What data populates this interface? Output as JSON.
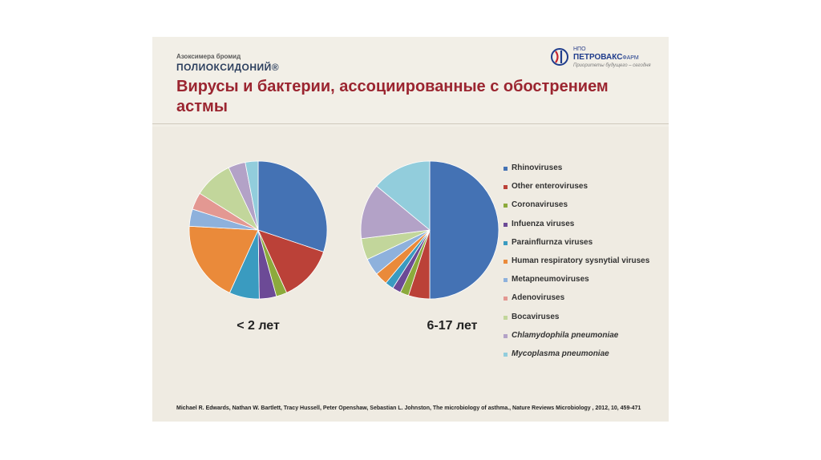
{
  "header": {
    "brand_small": "Азоксимера бромид",
    "brand_big": "ПОЛИОКСИДОНИЙ®",
    "logo_line1": "НПО",
    "logo_name": "ПЕТРОВАКС",
    "logo_suffix": "ФАРМ",
    "logo_tagline": "Приоритеты будущего – сегодня",
    "title": "Вирусы и бактерии, ассоциированные с обострением астмы"
  },
  "citation": "Michael R. Edwards, Nathan W. Bartlett, Tracy Hussell, Peter Openshaw, Sebastian L. Johnston, The microbiology of asthma., Nature Reviews Microbiology , 2012, 10, 459-471",
  "chart_data": [
    {
      "type": "pie",
      "label": "< 2 лет",
      "categories": [
        "Rhinoviruses",
        "Other enteroviruses",
        "Coronaviruses",
        "Infuenza viruses",
        "Parainflurnza viruses",
        "Human respiratory sysnytial viruses",
        "Metapneumoviruses",
        "Adenoviruses",
        "Bocaviruses",
        "Chlamydophila pneumoniae",
        "Mycoplasma pneumoniae"
      ],
      "values": [
        30,
        13,
        2.5,
        4,
        7,
        19,
        4,
        4,
        9,
        4,
        3
      ],
      "legend": "right"
    },
    {
      "type": "pie",
      "label": "6-17 лет",
      "categories": [
        "Rhinoviruses",
        "Other enteroviruses",
        "Coronaviruses",
        "Infuenza viruses",
        "Parainflurnza viruses",
        "Human respiratory sysnytial viruses",
        "Metapneumoviruses",
        "Adenoviruses",
        "Bocaviruses",
        "Chlamydophila pneumoniae",
        "Mycoplasma pneumoniae"
      ],
      "values": [
        50,
        5,
        2,
        2,
        2,
        3,
        4,
        0,
        5,
        13,
        14
      ],
      "legend": "right"
    }
  ],
  "legend": [
    {
      "label": "Rhinoviruses",
      "color": "#4472b4",
      "italic": false
    },
    {
      "label": "Other enteroviruses",
      "color": "#bb4138",
      "italic": false
    },
    {
      "label": "Coronaviruses",
      "color": "#8caa3c",
      "italic": false
    },
    {
      "label": "Infuenza viruses",
      "color": "#6c4a96",
      "italic": false
    },
    {
      "label": "Parainflurnza viruses",
      "color": "#3a9bc0",
      "italic": false
    },
    {
      "label": "Human respiratory sysnytial viruses",
      "color": "#ea8a3a",
      "italic": false
    },
    {
      "label": "Metapneumoviruses",
      "color": "#8eb1dc",
      "italic": false
    },
    {
      "label": "Adenoviruses",
      "color": "#e39892",
      "italic": false
    },
    {
      "label": "Bocaviruses",
      "color": "#c2d69b",
      "italic": false
    },
    {
      "label": "Chlamydophila pneumoniae",
      "color": "#b3a2c7",
      "italic": true
    },
    {
      "label": "Mycoplasma pneumoniae",
      "color": "#92cddc",
      "italic": true
    }
  ]
}
